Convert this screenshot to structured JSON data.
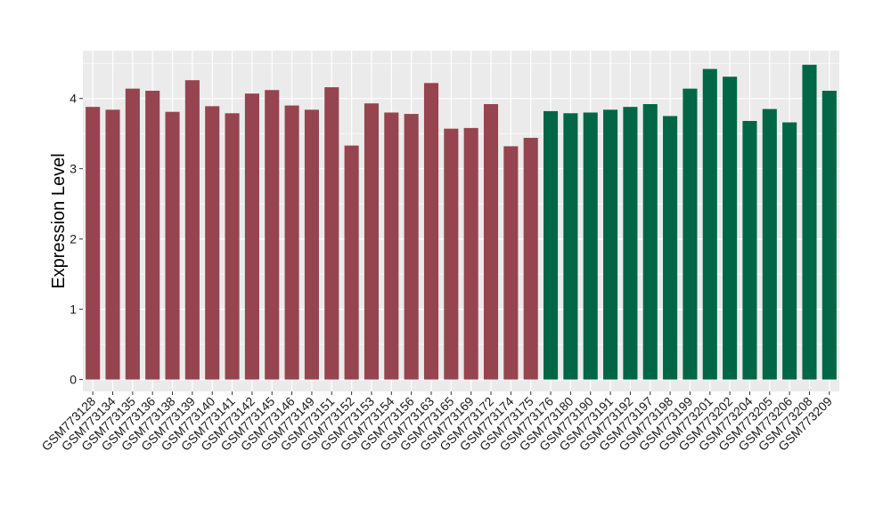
{
  "chart_data": {
    "type": "bar",
    "title": "",
    "xlabel": "",
    "ylabel": "Expression Level",
    "ylim": [
      -0.17,
      4.68
    ],
    "yticks": [
      0,
      1,
      2,
      3,
      4
    ],
    "grid": true,
    "legend": "none",
    "background": "#ebebeb",
    "gridline_color": "#ffffff",
    "categories": [
      "GSM773128",
      "GSM773134",
      "GSM773135",
      "GSM773136",
      "GSM773138",
      "GSM773139",
      "GSM773140",
      "GSM773141",
      "GSM773142",
      "GSM773145",
      "GSM773146",
      "GSM773149",
      "GSM773151",
      "GSM773152",
      "GSM773153",
      "GSM773154",
      "GSM773156",
      "GSM773163",
      "GSM773165",
      "GSM773169",
      "GSM773172",
      "GSM773174",
      "GSM773175",
      "GSM773176",
      "GSM773180",
      "GSM773190",
      "GSM773191",
      "GSM773192",
      "GSM773197",
      "GSM773198",
      "GSM773199",
      "GSM773201",
      "GSM773202",
      "GSM773204",
      "GSM773205",
      "GSM773206",
      "GSM773208",
      "GSM773209"
    ],
    "values": [
      3.88,
      3.84,
      4.14,
      4.11,
      3.81,
      4.26,
      3.89,
      3.79,
      4.07,
      4.12,
      3.9,
      3.84,
      4.16,
      3.33,
      3.93,
      3.8,
      3.78,
      4.22,
      3.57,
      3.58,
      3.92,
      3.32,
      3.44,
      3.82,
      3.79,
      3.8,
      3.84,
      3.88,
      3.92,
      3.75,
      4.14,
      4.42,
      4.31,
      3.68,
      3.85,
      3.66,
      4.48,
      4.11
    ],
    "bar_colors": [
      "#96444f",
      "#96444f",
      "#96444f",
      "#96444f",
      "#96444f",
      "#96444f",
      "#96444f",
      "#96444f",
      "#96444f",
      "#96444f",
      "#96444f",
      "#96444f",
      "#96444f",
      "#96444f",
      "#96444f",
      "#96444f",
      "#96444f",
      "#96444f",
      "#96444f",
      "#96444f",
      "#96444f",
      "#96444f",
      "#96444f",
      "#006645",
      "#006645",
      "#006645",
      "#006645",
      "#006645",
      "#006645",
      "#006645",
      "#006645",
      "#006645",
      "#006645",
      "#006645",
      "#006645",
      "#006645",
      "#006645",
      "#006645"
    ]
  }
}
